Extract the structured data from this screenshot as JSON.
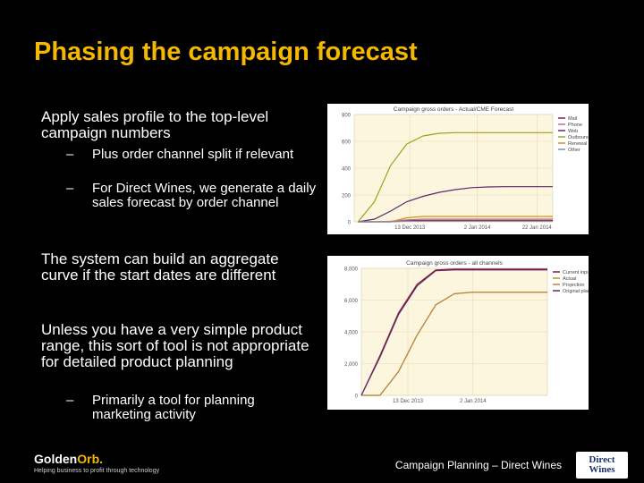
{
  "slide": {
    "title": "Phasing the campaign forecast",
    "bullets": [
      "Apply sales profile to the top-level campaign numbers",
      "The system can build an aggregate curve if the start dates are different",
      "Unless you have a very simple product range, this sort of tool is not appropriate for detailed product planning"
    ],
    "sub_bullets_1": [
      "Plus order channel split if relevant",
      "For Direct Wines, we generate a daily sales forecast by order channel"
    ],
    "sub_bullets_3": [
      "Primarily a tool for planning marketing activity"
    ],
    "dash": "–"
  },
  "footer": {
    "text": "Campaign Planning – Direct Wines",
    "logo_name_a": "Golden",
    "logo_name_b": "Orb.",
    "logo_tagline": "Helping business to profit through technology",
    "dw_logo_line1": "Direct",
    "dw_logo_line2": "Wines"
  },
  "colors": {
    "title": "#f5b800",
    "background": "#000000",
    "chart_bg": "#fdf6de"
  },
  "chart_data": [
    {
      "type": "line",
      "title": "Campaign gross orders - Actual/CME Forecast",
      "x_ticks": [
        "13 Dec 2013",
        "2 Jan 2014",
        "22 Jan 2014"
      ],
      "y_ticks": [
        "0",
        "200",
        "400",
        "600",
        "800"
      ],
      "ylim": [
        0,
        800
      ],
      "legend_position": "right",
      "series": [
        {
          "name": "Mail",
          "color": "#8b1a3a",
          "values": [
            0,
            0,
            0,
            10,
            10,
            10,
            10,
            10,
            10,
            10,
            10,
            10,
            10
          ]
        },
        {
          "name": "Phone",
          "color": "#c46a8a",
          "values": [
            0,
            0,
            5,
            15,
            20,
            20,
            20,
            20,
            20,
            20,
            20,
            20,
            20
          ]
        },
        {
          "name": "Web",
          "color": "#5a2a6a",
          "values": [
            0,
            20,
            80,
            150,
            190,
            220,
            240,
            255,
            260,
            262,
            262,
            262,
            262
          ]
        },
        {
          "name": "Outbound",
          "color": "#a0a020",
          "values": [
            0,
            150,
            420,
            580,
            640,
            660,
            665,
            665,
            665,
            665,
            665,
            665,
            665
          ]
        },
        {
          "name": "Renewal",
          "color": "#d09020",
          "values": [
            0,
            0,
            0,
            30,
            40,
            40,
            40,
            40,
            40,
            40,
            40,
            40,
            40
          ]
        },
        {
          "name": "Other",
          "color": "#8090b0",
          "values": [
            0,
            0,
            0,
            5,
            5,
            5,
            5,
            5,
            5,
            5,
            5,
            5,
            5
          ]
        }
      ]
    },
    {
      "type": "line",
      "title": "Campaign gross orders - all channels",
      "x_ticks": [
        "13 Dec 2013",
        "2 Jan 2014"
      ],
      "y_ticks": [
        "0",
        "2,000",
        "4,000",
        "6,000",
        "8,000"
      ],
      "ylim": [
        0,
        8000
      ],
      "legend_position": "right",
      "series": [
        {
          "name": "Current inputs",
          "color": "#8b1a3a",
          "values": [
            0,
            2500,
            5200,
            7000,
            7900,
            7950,
            7950,
            7950,
            7950,
            7950,
            7950
          ]
        },
        {
          "name": "Actual",
          "color": "#a0a020",
          "values": [
            0,
            0,
            1500,
            3800,
            5700,
            6400,
            6500,
            6500,
            6500,
            6500,
            6500
          ]
        },
        {
          "name": "Projection",
          "color": "#c08040",
          "values": [
            0,
            0,
            1500,
            3800,
            5700,
            6400,
            6500,
            6500,
            6500,
            6500,
            6500
          ]
        },
        {
          "name": "Original plan",
          "color": "#5a2a6a",
          "values": [
            0,
            2400,
            5100,
            6900,
            7850,
            7900,
            7900,
            7900,
            7900,
            7900,
            7900
          ]
        }
      ]
    }
  ]
}
